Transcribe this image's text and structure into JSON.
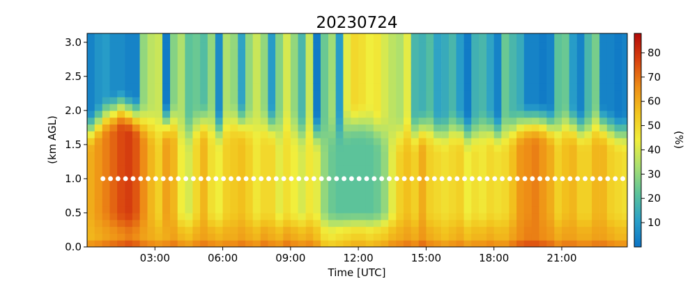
{
  "chart_data": {
    "type": "heatmap",
    "title": "20230724",
    "xlabel": "Time [UTC]",
    "ylabel": "(km AGL)",
    "colorbar_label": "(%)",
    "x_unit": "hours UTC",
    "xlim": [
      0.0,
      23.9
    ],
    "ylim": [
      0.0,
      3.13
    ],
    "x_ticks": [
      3,
      6,
      9,
      12,
      15,
      18,
      21
    ],
    "x_tick_labels": [
      "03:00",
      "06:00",
      "09:00",
      "12:00",
      "15:00",
      "18:00",
      "21:00"
    ],
    "y_ticks": [
      0.0,
      0.5,
      1.0,
      1.5,
      2.0,
      2.5,
      3.0
    ],
    "y_tick_labels": [
      "0.0",
      "0.5",
      "1.0",
      "1.5",
      "2.0",
      "2.5",
      "3.0"
    ],
    "colorbar_range": [
      0,
      88
    ],
    "colorbar_ticks": [
      10,
      20,
      30,
      40,
      50,
      60,
      70,
      80
    ],
    "colorbar_tick_labels": [
      "10",
      "20",
      "30",
      "40",
      "50",
      "60",
      "70",
      "80"
    ],
    "colormap": [
      "#0b73c6",
      "#2aa0c8",
      "#5cc39a",
      "#a8df72",
      "#f1ee3c",
      "#f2c51e",
      "#ee8d16",
      "#d9420f",
      "#b20a0a"
    ],
    "heights_km": [
      0.0,
      0.1,
      0.2,
      0.3,
      0.4,
      0.5,
      0.6,
      0.7,
      0.8,
      0.9,
      1.0,
      1.1,
      1.2,
      1.3,
      1.4,
      1.5,
      1.6,
      1.7,
      1.8,
      1.9,
      2.0,
      2.1,
      2.2,
      2.3,
      2.4,
      2.5,
      2.6,
      2.7,
      2.8,
      2.9,
      3.0,
      3.1
    ],
    "time_hours": [
      0.0,
      0.33,
      0.67,
      1.0,
      1.33,
      1.67,
      2.0,
      2.33,
      2.67,
      3.0,
      3.33,
      3.67,
      4.0,
      4.33,
      4.67,
      5.0,
      5.33,
      5.67,
      6.0,
      6.33,
      6.67,
      7.0,
      7.33,
      7.67,
      8.0,
      8.33,
      8.67,
      9.0,
      9.33,
      9.67,
      10.0,
      10.33,
      10.67,
      11.0,
      11.33,
      11.67,
      12.0,
      12.33,
      12.67,
      13.0,
      13.33,
      13.67,
      14.0,
      14.33,
      14.67,
      15.0,
      15.33,
      15.67,
      16.0,
      16.33,
      16.67,
      17.0,
      17.33,
      17.67,
      18.0,
      18.33,
      18.67,
      19.0,
      19.33,
      19.67,
      20.0,
      20.33,
      20.67,
      21.0,
      21.33,
      21.67,
      22.0,
      22.33,
      22.67,
      23.0,
      23.33,
      23.67
    ],
    "profiles": {
      "surface_pct": [
        58,
        60,
        62,
        64,
        66,
        68,
        66,
        62,
        60,
        58,
        60,
        62,
        58,
        56,
        60,
        62,
        60,
        58,
        60,
        60,
        62,
        60,
        58,
        62,
        60,
        58,
        62,
        60,
        58,
        60,
        56,
        48,
        46,
        48,
        50,
        52,
        52,
        50,
        52,
        54,
        58,
        60,
        62,
        60,
        64,
        60,
        58,
        56,
        58,
        60,
        56,
        58,
        58,
        60,
        58,
        58,
        62,
        66,
        68,
        68,
        66,
        64,
        60,
        62,
        62,
        60,
        60,
        62,
        62,
        60,
        58,
        58
      ],
      "mixed_layer_pct": [
        60,
        64,
        68,
        72,
        76,
        78,
        74,
        66,
        58,
        52,
        62,
        58,
        44,
        40,
        50,
        58,
        48,
        44,
        52,
        54,
        56,
        52,
        46,
        50,
        50,
        42,
        48,
        44,
        40,
        46,
        42,
        30,
        24,
        22,
        22,
        22,
        22,
        22,
        24,
        30,
        42,
        52,
        56,
        52,
        60,
        52,
        50,
        48,
        50,
        52,
        44,
        48,
        46,
        50,
        48,
        50,
        56,
        64,
        66,
        68,
        64,
        60,
        52,
        56,
        58,
        52,
        52,
        58,
        58,
        52,
        50,
        48
      ],
      "boundary_layer_top_km": [
        1.5,
        1.6,
        1.7,
        1.75,
        1.8,
        1.75,
        1.7,
        1.6,
        1.55,
        1.5,
        1.6,
        1.6,
        1.5,
        1.45,
        1.55,
        1.6,
        1.55,
        1.5,
        1.55,
        1.6,
        1.6,
        1.55,
        1.5,
        1.55,
        1.55,
        1.5,
        1.55,
        1.5,
        1.45,
        1.5,
        1.45,
        1.4,
        1.45,
        1.5,
        1.55,
        1.6,
        1.6,
        1.55,
        1.5,
        1.45,
        1.4,
        1.4,
        1.45,
        1.45,
        1.5,
        1.5,
        1.45,
        1.45,
        1.5,
        1.5,
        1.45,
        1.45,
        1.5,
        1.5,
        1.45,
        1.45,
        1.5,
        1.55,
        1.6,
        1.6,
        1.6,
        1.55,
        1.5,
        1.55,
        1.55,
        1.5,
        1.5,
        1.55,
        1.55,
        1.5,
        1.45,
        1.45
      ],
      "upper_air_pct": [
        4,
        8,
        10,
        6,
        6,
        4,
        4,
        30,
        36,
        38,
        2,
        28,
        34,
        22,
        24,
        20,
        30,
        6,
        34,
        30,
        12,
        30,
        38,
        30,
        10,
        28,
        40,
        30,
        18,
        38,
        2,
        24,
        32,
        10,
        42,
        50,
        48,
        44,
        46,
        40,
        36,
        34,
        42,
        18,
        16,
        20,
        12,
        14,
        18,
        10,
        2,
        16,
        18,
        12,
        4,
        24,
        18,
        14,
        4,
        4,
        2,
        4,
        22,
        24,
        10,
        4,
        18,
        26,
        4,
        4,
        2,
        4
      ]
    },
    "marker_series": {
      "name": "",
      "height_km": 1.0,
      "color": "#ffffff",
      "count": 70
    },
    "grid": false
  }
}
